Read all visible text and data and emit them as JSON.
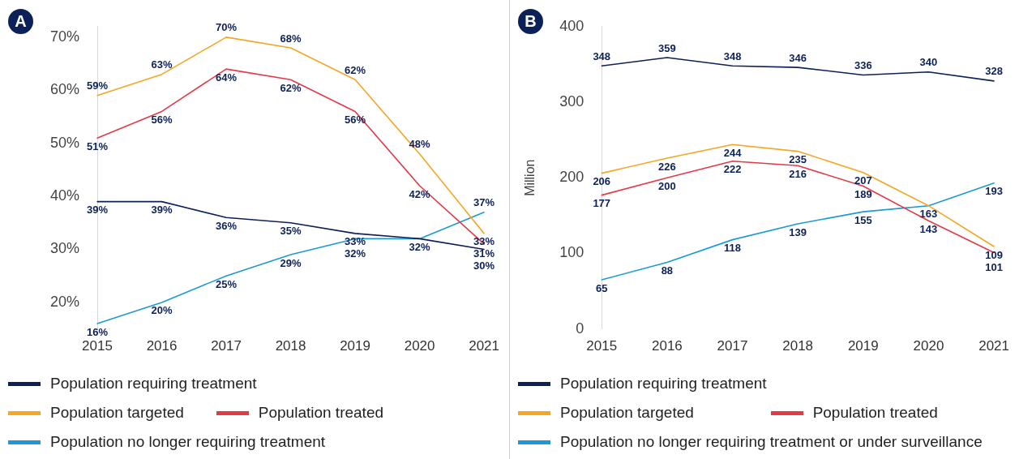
{
  "chart_data": [
    {
      "type": "line",
      "title": "A",
      "categories": [
        "2015",
        "2016",
        "2017",
        "2018",
        "2019",
        "2020",
        "2021"
      ],
      "ylim": [
        15,
        72
      ],
      "yticks": [
        {
          "value": 20,
          "label": "20%"
        },
        {
          "value": 30,
          "label": "30%"
        },
        {
          "value": 40,
          "label": "40%"
        },
        {
          "value": 50,
          "label": "50%"
        },
        {
          "value": 60,
          "label": "60%"
        },
        {
          "value": 70,
          "label": "70%"
        }
      ],
      "grid": false,
      "legend": "bottom",
      "marker": "none",
      "line_style": "solid",
      "series": [
        {
          "name": "Population requiring treatment",
          "color": "#0d2159",
          "values": [
            39,
            39,
            36,
            35,
            33,
            32,
            30
          ],
          "value_labels": [
            "39%",
            "39%",
            "36%",
            "35%",
            "33%",
            "32%",
            "30%"
          ]
        },
        {
          "name": "Population targeted",
          "color": "#f5a623",
          "values": [
            59,
            63,
            70,
            68,
            62,
            48,
            33
          ],
          "value_labels": [
            "59%",
            "63%",
            "70%",
            "68%",
            "62%",
            "48%",
            "33%"
          ]
        },
        {
          "name": "Population treated",
          "color": "#e63946",
          "values": [
            51,
            56,
            64,
            62,
            56,
            42,
            31
          ],
          "value_labels": [
            "51%",
            "56%",
            "64%",
            "62%",
            "56%",
            "42%",
            "31%"
          ]
        },
        {
          "name": "Population no longer requiring treatment",
          "color": "#1b9ad6",
          "values": [
            16,
            20,
            25,
            29,
            32,
            32,
            37
          ],
          "value_labels": [
            "16%",
            "20%",
            "25%",
            "29%",
            "32%",
            null,
            "37%"
          ]
        }
      ]
    },
    {
      "type": "line",
      "title": "B",
      "ylabel": "Million",
      "categories": [
        "2015",
        "2016",
        "2017",
        "2018",
        "2019",
        "2020",
        "2021"
      ],
      "ylim": [
        0,
        400
      ],
      "yticks": [
        0,
        100,
        200,
        300,
        400
      ],
      "grid": false,
      "legend": "bottom",
      "marker": "none",
      "line_style": "solid",
      "series": [
        {
          "name": "Population requiring treatment",
          "color": "#0d2159",
          "values": [
            348,
            359,
            348,
            346,
            336,
            340,
            328
          ],
          "value_labels": [
            "348",
            "359",
            "348",
            "346",
            "336",
            "340",
            "328"
          ]
        },
        {
          "name": "Population targeted",
          "color": "#f5a623",
          "values": [
            206,
            226,
            244,
            235,
            207,
            163,
            109
          ],
          "value_labels": [
            "206",
            "226",
            "244",
            "235",
            "207",
            null,
            "109"
          ]
        },
        {
          "name": "Population treated",
          "color": "#e63946",
          "values": [
            177,
            200,
            222,
            216,
            189,
            143,
            101
          ],
          "value_labels": [
            "177",
            "200",
            "222",
            "216",
            "189",
            "143",
            "101"
          ]
        },
        {
          "name": "Population no longer requiring treatment or under surveillance",
          "color": "#1b9ad6",
          "values": [
            65,
            88,
            118,
            139,
            155,
            163,
            193
          ],
          "value_labels": [
            "65",
            "88",
            "118",
            "139",
            "155",
            "163",
            "193"
          ]
        }
      ]
    }
  ]
}
